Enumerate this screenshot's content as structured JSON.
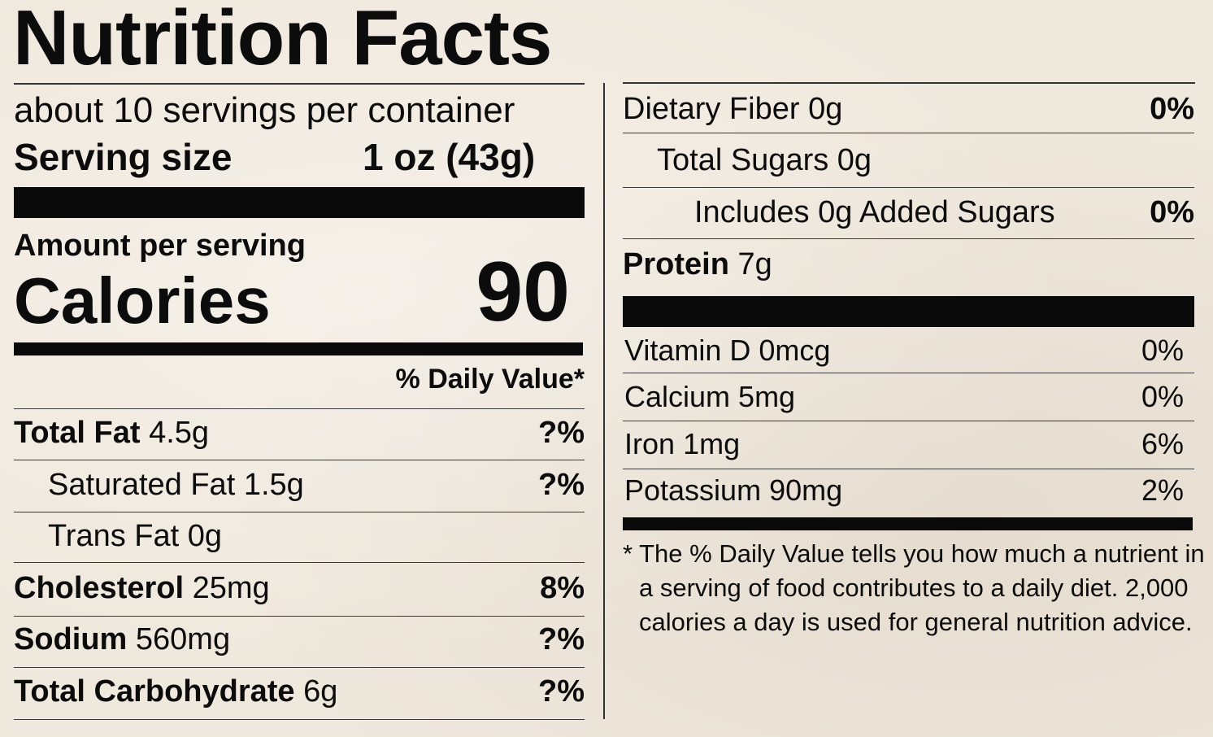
{
  "label": {
    "title": "Nutrition Facts",
    "servings_per_container": "about 10 servings per container",
    "serving_size_label": "Serving size",
    "serving_size_value": "1 oz (43g)",
    "amount_per_serving": "Amount per serving",
    "calories_label": "Calories",
    "calories_value": "90",
    "daily_value_header": "% Daily Value*"
  },
  "left_nutrients": [
    {
      "name": "Total Fat",
      "amount": "4.5g",
      "dv": "?%"
    },
    {
      "name": "Saturated Fat",
      "amount": "1.5g",
      "dv": "?%"
    },
    {
      "name": "Trans Fat",
      "amount": "0g",
      "dv": ""
    },
    {
      "name": "Cholesterol",
      "amount": "25mg",
      "dv": "8%"
    },
    {
      "name": "Sodium",
      "amount": "560mg",
      "dv": "?%"
    },
    {
      "name": "Total Carbohydrate",
      "amount": "6g",
      "dv": "?%"
    }
  ],
  "right_nutrients": [
    {
      "name": "Dietary Fiber",
      "amount": "0g",
      "dv": "0%"
    },
    {
      "name": "Total Sugars",
      "amount": "0g",
      "dv": ""
    },
    {
      "name": "Includes 0g Added Sugars",
      "amount": "",
      "dv": "0%"
    },
    {
      "name": "Protein",
      "amount": "7g",
      "dv": ""
    }
  ],
  "vitamins": [
    {
      "name": "Vitamin D",
      "amount": "0mcg",
      "dv": "0%"
    },
    {
      "name": "Calcium",
      "amount": "5mg",
      "dv": "0%"
    },
    {
      "name": "Iron",
      "amount": "1mg",
      "dv": "6%"
    },
    {
      "name": "Potassium",
      "amount": "90mg",
      "dv": "2%"
    }
  ],
  "footnote": {
    "line1": "* The % Daily Value tells you how much a nutrient in",
    "line2": "a serving of food contributes to a daily diet. 2,000",
    "line3": "calories a day is used for general nutrition advice."
  }
}
